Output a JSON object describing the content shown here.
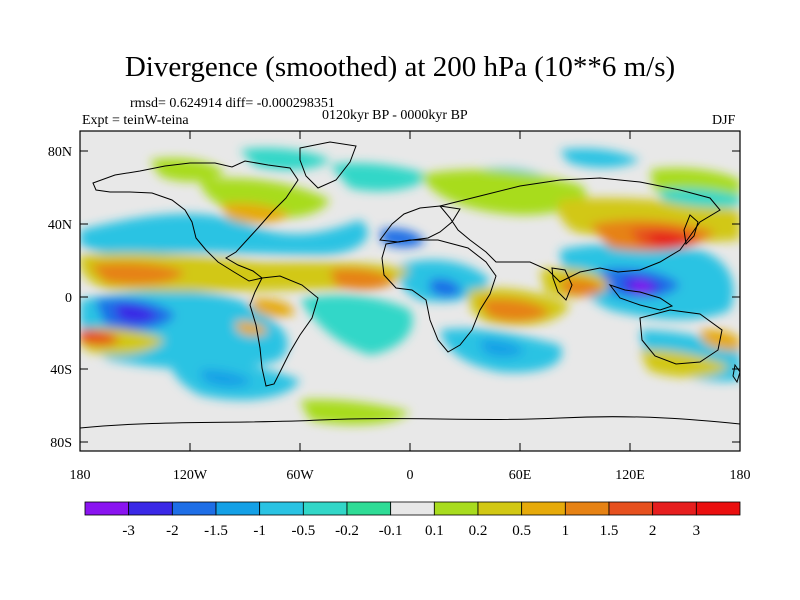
{
  "title": "Divergence (smoothed) at 200 hPa (10**6 m/s)",
  "stats": "rmsd= 0.624914 diff= -0.000298351",
  "experiment": "Expt = teinW-teina",
  "period": "0120kyr BP - 0000kyr BP",
  "season": "DJF",
  "lat_ticks": [
    "80N",
    "40N",
    "0",
    "40S",
    "80S"
  ],
  "lon_ticks": [
    "180",
    "120W",
    "60W",
    "0",
    "60E",
    "120E",
    "180"
  ],
  "colorbar": {
    "labels": [
      "-3",
      "-2",
      "-1.5",
      "-1",
      "-0.5",
      "-0.2",
      "-0.1",
      "0.1",
      "0.2",
      "0.5",
      "1",
      "1.5",
      "2",
      "3"
    ],
    "colors": [
      "#8a14f0",
      "#3a28e6",
      "#1e6ee6",
      "#14a0e6",
      "#2ac3e3",
      "#32d7c8",
      "#2fdc96",
      "#e8e8e8",
      "#a8dc1e",
      "#d2c814",
      "#e6aa0a",
      "#e68214",
      "#e6501e",
      "#e61e1e",
      "#ea0f0f"
    ]
  }
}
